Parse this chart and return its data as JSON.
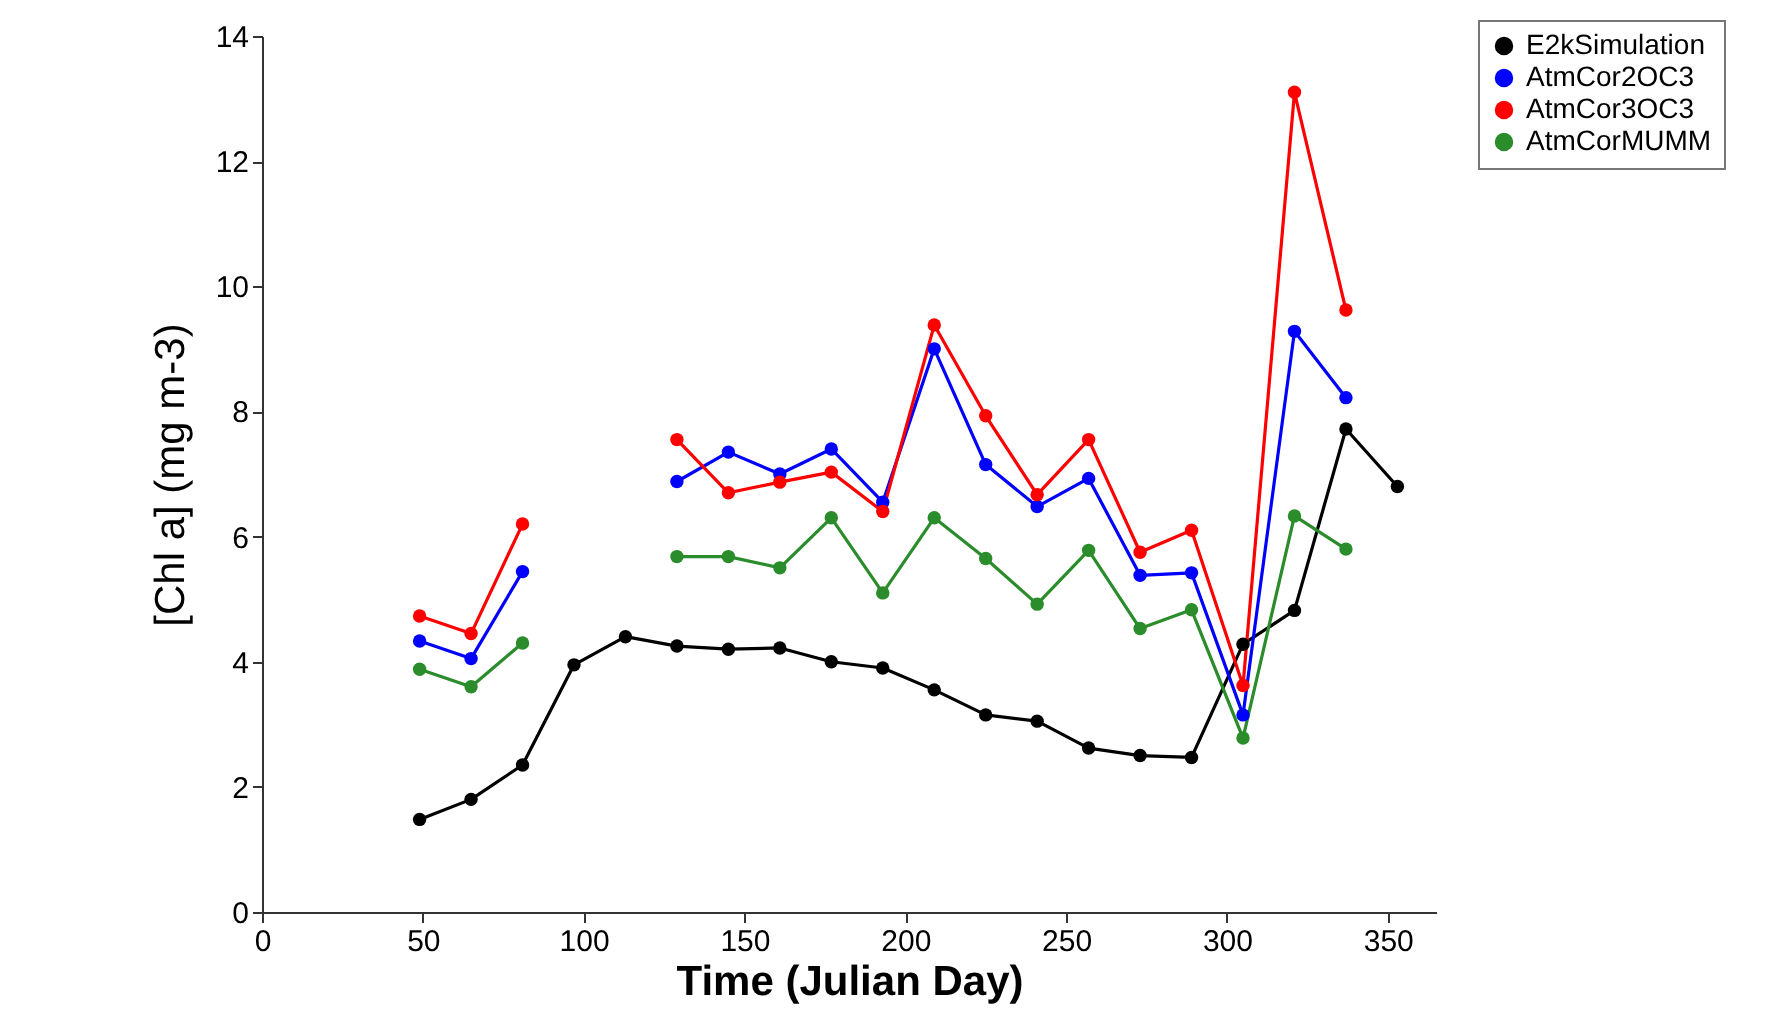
{
  "chart_data": {
    "type": "line",
    "xlabel": "Time (Julian Day)",
    "ylabel": "[Chl a] (mg m-3)",
    "x": [
      49,
      65,
      81,
      97,
      113,
      129,
      145,
      161,
      177,
      193,
      209,
      225,
      241,
      257,
      273,
      289,
      305,
      321,
      337,
      353
    ],
    "series": [
      {
        "name": "E2kSimulation",
        "color": "#000000",
        "values": [
          1.48,
          1.8,
          2.35,
          3.95,
          4.4,
          4.25,
          4.2,
          4.22,
          4.0,
          3.9,
          3.55,
          3.15,
          3.05,
          2.62,
          2.5,
          2.47,
          4.28,
          4.82,
          7.72,
          6.8
        ]
      },
      {
        "name": "AtmCor2OC3",
        "color": "#0000ff",
        "values": [
          4.33,
          4.05,
          5.44,
          null,
          null,
          6.88,
          7.35,
          7.0,
          7.4,
          6.55,
          9.0,
          7.15,
          6.48,
          6.93,
          5.38,
          5.42,
          3.15,
          9.28,
          8.22,
          null
        ]
      },
      {
        "name": "AtmCor3OC3",
        "color": "#ff0000",
        "values": [
          4.73,
          4.45,
          6.2,
          null,
          null,
          7.55,
          6.7,
          6.87,
          7.03,
          6.4,
          9.38,
          7.93,
          6.67,
          7.55,
          5.75,
          6.1,
          3.62,
          13.1,
          9.62,
          null
        ]
      },
      {
        "name": "AtmCorMUMM",
        "color": "#2a8c2a",
        "values": [
          3.88,
          3.6,
          4.3,
          null,
          null,
          5.68,
          5.68,
          5.5,
          6.3,
          5.1,
          6.3,
          5.65,
          4.92,
          5.78,
          4.53,
          4.83,
          2.78,
          6.33,
          5.8,
          null
        ]
      }
    ],
    "xlim": [
      0,
      365
    ],
    "xticks": [
      0,
      50,
      100,
      150,
      200,
      250,
      300,
      350
    ],
    "ylim": [
      0,
      14
    ],
    "yticks": [
      0,
      2,
      4,
      6,
      8,
      10,
      12,
      14
    ],
    "legend": "top right",
    "marker": "circle",
    "line_style": "solid"
  }
}
